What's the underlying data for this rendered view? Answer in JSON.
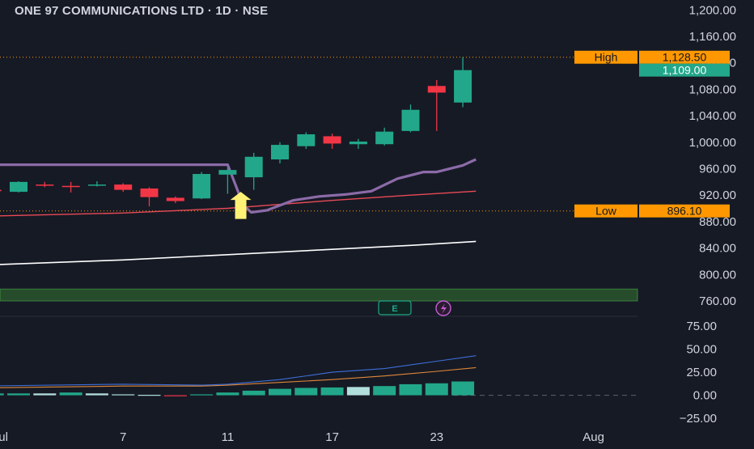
{
  "header": {
    "title": "ONE 97 COMMUNICATIONS LTD · 1D · NSE"
  },
  "colors": {
    "background": "#161a25",
    "up": "#22a78a",
    "down": "#f23645",
    "text": "#d1d4dc",
    "marker_orange": "#ff9800",
    "band_green": "#2e5e2e",
    "purple_line": "#8c6ba8",
    "red_line": "#e84a55",
    "white_line": "#ffffff",
    "yellow_arrow": "#fff176",
    "adx_blue": "#3d6fd8",
    "adx_orange": "#e0883a"
  },
  "markers": {
    "high_label": "High",
    "high_value": "1,128.50",
    "low_label": "Low",
    "low_value": "896.10",
    "last_price": "1,109.00"
  },
  "badges": {
    "earnings": "E",
    "dividend_icon": "lightning-icon"
  },
  "chart_data": [
    {
      "type": "candlestick",
      "title": "ONE 97 COMMUNICATIONS LTD · 1D · NSE",
      "ylim": [
        738,
        1215
      ],
      "y_ticks": [
        "1,200.00",
        "1,160.00",
        "1,120.00",
        "1,080.00",
        "1,040.00",
        "1,000.00",
        "960.00",
        "920.00",
        "880.00",
        "840.00",
        "800.00",
        "760.00"
      ],
      "y_tick_values": [
        1200,
        1160,
        1120,
        1080,
        1040,
        1000,
        960,
        920,
        880,
        840,
        800,
        760
      ],
      "x_ticks": [
        "Jul",
        "7",
        "11",
        "17",
        "23",
        "Aug"
      ],
      "x_tick_index": [
        -0.7,
        4,
        8,
        12,
        16,
        22
      ],
      "candles": [
        {
          "i": -1,
          "o": 928,
          "h": 932,
          "l": 922,
          "c": 926
        },
        {
          "i": 0,
          "o": 925,
          "h": 941,
          "l": 924,
          "c": 940
        },
        {
          "i": 1,
          "o": 936,
          "h": 940,
          "l": 932,
          "c": 935
        },
        {
          "i": 2,
          "o": 934,
          "h": 940,
          "l": 924,
          "c": 933
        },
        {
          "i": 3,
          "o": 935,
          "h": 941,
          "l": 933,
          "c": 936
        },
        {
          "i": 4,
          "o": 936,
          "h": 938,
          "l": 925,
          "c": 928
        },
        {
          "i": 5,
          "o": 930,
          "h": 932,
          "l": 903,
          "c": 917
        },
        {
          "i": 6,
          "o": 916,
          "h": 918,
          "l": 908,
          "c": 911
        },
        {
          "i": 7,
          "o": 915,
          "h": 955,
          "l": 914,
          "c": 952
        },
        {
          "i": 8,
          "o": 951,
          "h": 962,
          "l": 922,
          "c": 958
        },
        {
          "i": 9,
          "o": 947,
          "h": 984,
          "l": 928,
          "c": 978
        },
        {
          "i": 10,
          "o": 974,
          "h": 1000,
          "l": 968,
          "c": 996
        },
        {
          "i": 11,
          "o": 994,
          "h": 1015,
          "l": 990,
          "c": 1012
        },
        {
          "i": 12,
          "o": 1009,
          "h": 1013,
          "l": 990,
          "c": 998
        },
        {
          "i": 13,
          "o": 997,
          "h": 1005,
          "l": 990,
          "c": 1001
        },
        {
          "i": 14,
          "o": 997,
          "h": 1022,
          "l": 995,
          "c": 1016
        },
        {
          "i": 15,
          "o": 1017,
          "h": 1057,
          "l": 1015,
          "c": 1049
        },
        {
          "i": 16,
          "o": 1085,
          "h": 1094,
          "l": 1017,
          "c": 1075
        },
        {
          "i": 17,
          "o": 1060,
          "h": 1128.5,
          "l": 1053,
          "c": 1109
        }
      ],
      "purple_line": [
        [
          -1.5,
          966
        ],
        [
          8,
          966
        ],
        [
          8.6,
          905
        ],
        [
          8.9,
          894
        ],
        [
          9.5,
          897
        ],
        [
          10.5,
          912
        ],
        [
          11.5,
          918
        ],
        [
          12.5,
          921
        ],
        [
          13.5,
          926
        ],
        [
          14.5,
          945
        ],
        [
          15.5,
          955
        ],
        [
          16,
          955
        ],
        [
          17,
          965
        ],
        [
          17.5,
          974
        ]
      ],
      "red_line": [
        [
          -1.5,
          888
        ],
        [
          4,
          893
        ],
        [
          8,
          900
        ],
        [
          12,
          912
        ],
        [
          15,
          920
        ],
        [
          17.5,
          926
        ]
      ],
      "white_line": [
        [
          -1.5,
          814
        ],
        [
          4,
          822
        ],
        [
          8,
          830
        ],
        [
          12,
          838
        ],
        [
          15,
          844
        ],
        [
          17.5,
          850
        ]
      ],
      "zone": {
        "from": 760,
        "to": 778
      },
      "arrow_index": 8.5
    },
    {
      "type": "bar",
      "ylim": [
        -32,
        84
      ],
      "y_ticks": [
        "75.00",
        "50.00",
        "25.00",
        "0.00",
        "−25.00"
      ],
      "y_tick_values": [
        75,
        50,
        25,
        0,
        -25
      ],
      "histogram": [
        {
          "i": -1,
          "v": 2
        },
        {
          "i": 0,
          "v": 2
        },
        {
          "i": 1,
          "v": 2
        },
        {
          "i": 2,
          "v": 3
        },
        {
          "i": 3,
          "v": 2
        },
        {
          "i": 4,
          "v": 1
        },
        {
          "i": 5,
          "v": 0.5
        },
        {
          "i": 6,
          "v": -1
        },
        {
          "i": 7,
          "v": 1
        },
        {
          "i": 8,
          "v": 3
        },
        {
          "i": 9,
          "v": 5
        },
        {
          "i": 10,
          "v": 7
        },
        {
          "i": 11,
          "v": 8
        },
        {
          "i": 12,
          "v": 8.5
        },
        {
          "i": 13,
          "v": 9
        },
        {
          "i": 14,
          "v": 10
        },
        {
          "i": 15,
          "v": 12
        },
        {
          "i": 16,
          "v": 13
        },
        {
          "i": 17,
          "v": 15
        }
      ],
      "histogram_colors": [
        "#22a78a",
        "#22a78a",
        "#b2dfdb",
        "#22a78a",
        "#b2dfdb",
        "#b2dfdb",
        "#b2dfdb",
        "#f23645",
        "#22a78a",
        "#22a78a",
        "#22a78a",
        "#22a78a",
        "#22a78a",
        "#22a78a",
        "#b2dfdb",
        "#22a78a",
        "#22a78a",
        "#22a78a",
        "#22a78a"
      ],
      "blue_line": [
        [
          -1.5,
          10
        ],
        [
          4,
          12
        ],
        [
          7,
          11
        ],
        [
          8,
          12
        ],
        [
          10,
          17
        ],
        [
          12,
          25
        ],
        [
          14,
          29
        ],
        [
          16,
          37
        ],
        [
          17.5,
          43
        ]
      ],
      "orange_line": [
        [
          -1.5,
          8
        ],
        [
          4,
          10
        ],
        [
          7,
          10
        ],
        [
          8,
          11
        ],
        [
          10,
          14
        ],
        [
          12,
          17
        ],
        [
          14,
          21
        ],
        [
          16,
          26
        ],
        [
          17.5,
          30
        ]
      ]
    }
  ]
}
